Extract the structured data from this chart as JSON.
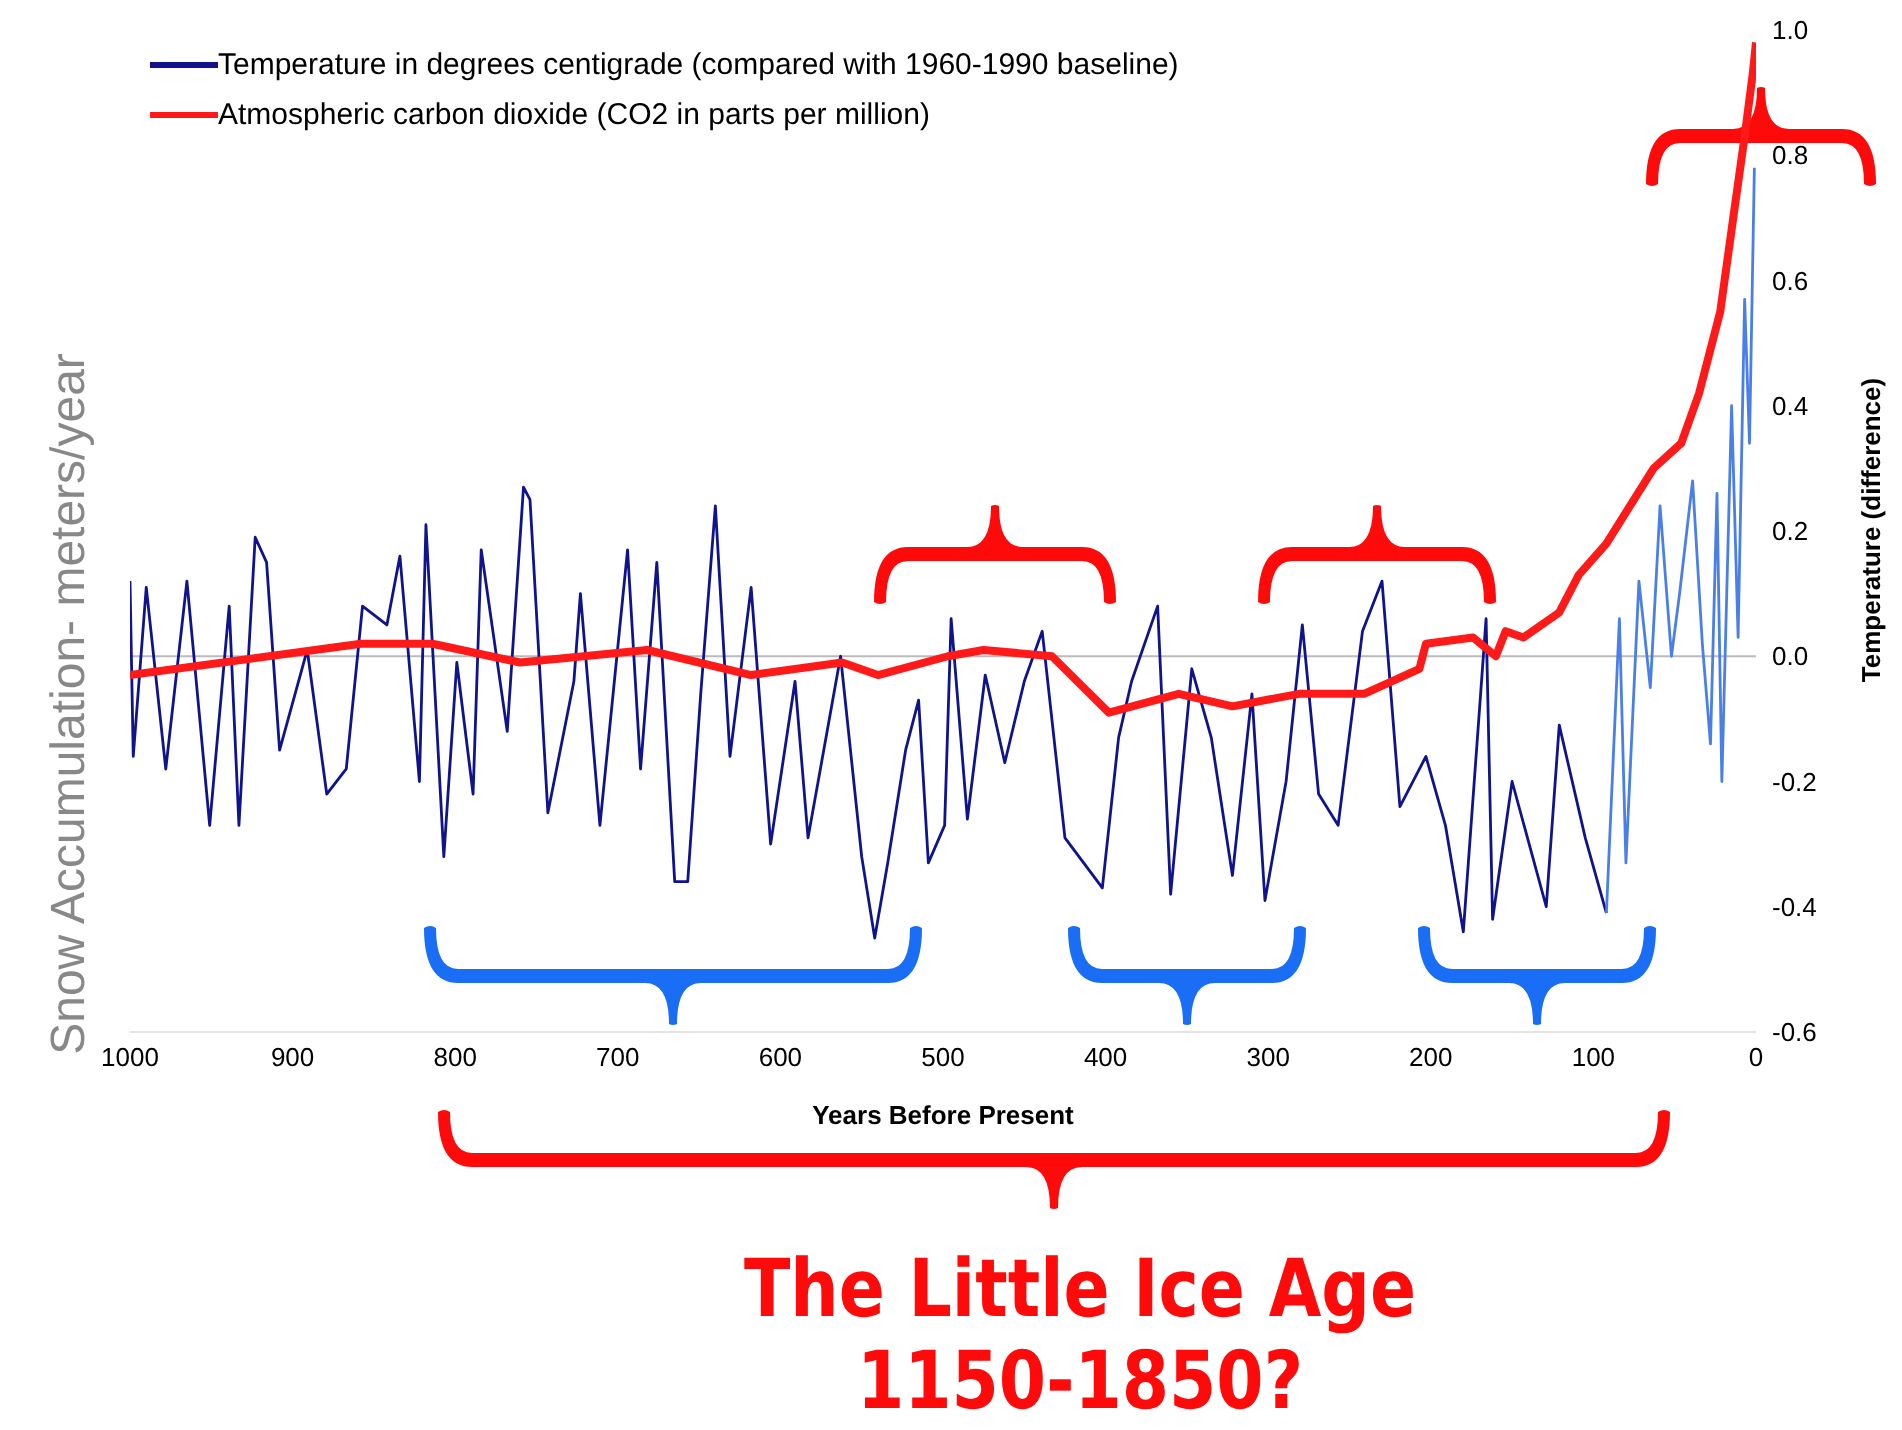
{
  "chart_data": {
    "type": "line",
    "xlabel": "Years Before Present",
    "ylabel": "Snow Accumulation- meters/year",
    "y2label": "Temperature (difference)",
    "xlim": [
      1000,
      0
    ],
    "xticks": [
      1000,
      900,
      800,
      700,
      600,
      500,
      400,
      300,
      200,
      100,
      0
    ],
    "y2lim": [
      -0.6,
      1.0
    ],
    "y2ticks": [
      {
        "value": -0.6,
        "label": "-0.6"
      },
      {
        "value": -0.4,
        "label": "-0.4"
      },
      {
        "value": -0.2,
        "label": "-0.2"
      },
      {
        "value": 0,
        "label": "0.0"
      },
      {
        "value": 0.2,
        "label": "0.2"
      },
      {
        "value": 0.4,
        "label": "0.4"
      },
      {
        "value": 0.6,
        "label": "0.6"
      },
      {
        "value": 0.8,
        "label": "0.8"
      },
      {
        "value": 1.0,
        "label": "1.0"
      }
    ],
    "legend": "top left",
    "grid": false,
    "ref_lines": [
      {
        "axis": "y2",
        "value": 0,
        "color": "#bbbbbb"
      }
    ],
    "annotations": [
      "The Little Ice Age",
      "1150-1850?"
    ],
    "series": [
      {
        "name": "Temperature in degrees centigrade (compared with 1960-1990 baseline)",
        "color": "#10148c",
        "axis": "y2",
        "x": [
          1000,
          998,
          990,
          978,
          965,
          951,
          939,
          933,
          923,
          916,
          908,
          891,
          879,
          867,
          857,
          842,
          834,
          822,
          818,
          807,
          799,
          789,
          784,
          768,
          758,
          754,
          743,
          727,
          723,
          711,
          694,
          686,
          676,
          665,
          657,
          649,
          640,
          631,
          618,
          606,
          591,
          583,
          563,
          550,
          542,
          534,
          523,
          515,
          509,
          499,
          495,
          485,
          474,
          462,
          450,
          439,
          425,
          402,
          392,
          384,
          368,
          360,
          347,
          335,
          322,
          310,
          302,
          289,
          279,
          269,
          257,
          242,
          230,
          219,
          203,
          191,
          180,
          166,
          162,
          150,
          129,
          121,
          105,
          92
        ],
        "values": [
          0.12,
          -0.16,
          0.11,
          -0.18,
          0.12,
          -0.27,
          0.08,
          -0.27,
          0.19,
          0.15,
          -0.15,
          0.01,
          -0.22,
          -0.18,
          0.08,
          0.05,
          0.16,
          -0.2,
          0.21,
          -0.32,
          -0.01,
          -0.22,
          0.17,
          -0.12,
          0.27,
          0.25,
          -0.25,
          -0.04,
          0.1,
          -0.27,
          0.17,
          -0.18,
          0.15,
          -0.36,
          -0.36,
          -0.06,
          0.24,
          -0.16,
          0.11,
          -0.3,
          -0.04,
          -0.29,
          0.0,
          -0.32,
          -0.45,
          -0.33,
          -0.15,
          -0.07,
          -0.33,
          -0.27,
          0.06,
          -0.26,
          -0.03,
          -0.17,
          -0.04,
          0.04,
          -0.29,
          -0.37,
          -0.13,
          -0.04,
          0.08,
          -0.38,
          -0.02,
          -0.13,
          -0.35,
          -0.06,
          -0.39,
          -0.2,
          0.05,
          -0.22,
          -0.27,
          0.04,
          0.12,
          -0.24,
          -0.16,
          -0.27,
          -0.44,
          0.06,
          -0.42,
          -0.2,
          -0.4,
          -0.11,
          -0.29,
          -0.41
        ]
      },
      {
        "color": "#4a7fe8",
        "axis": "y2",
        "x": [
          92,
          84,
          80,
          72,
          65,
          59,
          52,
          47,
          39,
          33,
          28,
          24,
          21,
          15,
          11,
          7,
          4,
          1
        ],
        "values": [
          -0.41,
          0.06,
          -0.33,
          0.12,
          -0.05,
          0.24,
          0.0,
          0.1,
          0.28,
          0.02,
          -0.14,
          0.26,
          -0.2,
          0.4,
          0.03,
          0.57,
          0.34,
          0.78
        ]
      },
      {
        "name": "Atmospheric carbon dioxide (CO2 in parts per million)",
        "color": "#ff1a1a",
        "axis": "y2",
        "x": [
          1000,
          858,
          814,
          760,
          682,
          618,
          562,
          540,
          497,
          475,
          433,
          398,
          355,
          322,
          281,
          241,
          207,
          203,
          174,
          160,
          154,
          143,
          121,
          109,
          92,
          63,
          46,
          35,
          22,
          14,
          7,
          2,
          0
        ],
        "values": [
          -0.03,
          0.02,
          0.02,
          -0.01,
          0.01,
          -0.03,
          -0.01,
          -0.03,
          0.0,
          0.01,
          0.0,
          -0.09,
          -0.06,
          -0.08,
          -0.06,
          -0.06,
          -0.02,
          0.02,
          0.03,
          0.0,
          0.04,
          0.03,
          0.07,
          0.13,
          0.18,
          0.3,
          0.34,
          0.42,
          0.55,
          0.7,
          0.83,
          0.93,
          0.98
        ]
      }
    ]
  }
}
